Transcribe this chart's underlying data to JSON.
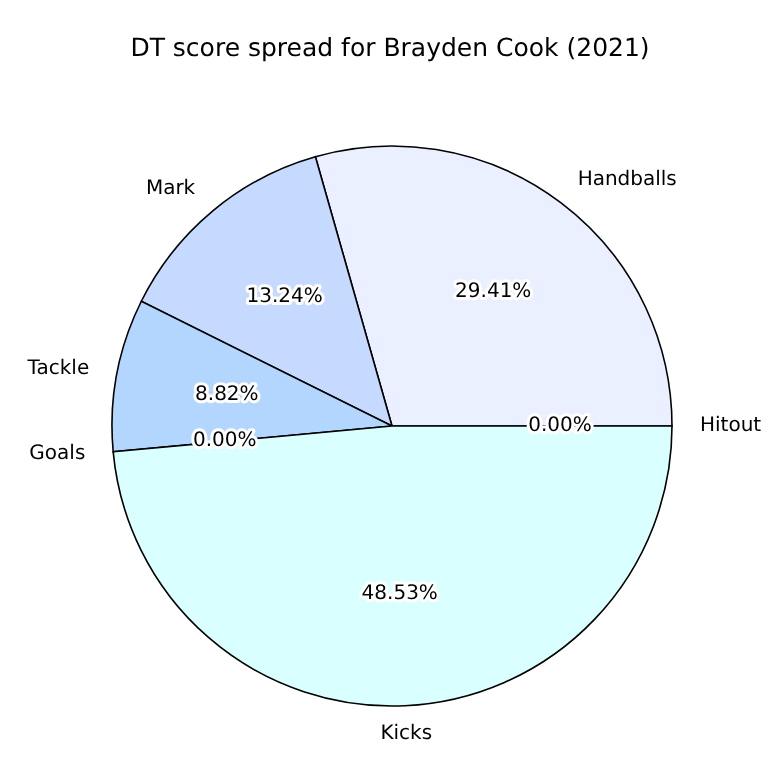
{
  "chart_data": {
    "type": "pie",
    "title": "DT score spread for Brayden Cook (2021)",
    "categories": [
      "Hitout",
      "Handballs",
      "Mark",
      "Tackle",
      "Goals",
      "Kicks"
    ],
    "values": [
      0,
      29.41,
      13.24,
      8.82,
      0,
      48.53
    ],
    "colors": [
      "#f0f5ff",
      "#eaf0ff",
      "#c6d9ff",
      "#b3d6ff",
      "#cce0ff",
      "#d9ffff"
    ],
    "value_labels": [
      "0.00%",
      "29.41%",
      "13.24%",
      "8.82%",
      "0.00%",
      "48.53%"
    ]
  }
}
